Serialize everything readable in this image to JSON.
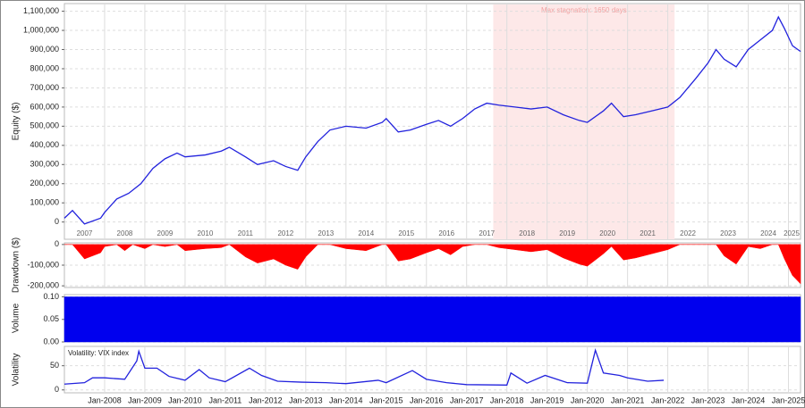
{
  "chart_data": [
    {
      "type": "line",
      "ylabel": "Equity ($)",
      "color": "#2222dd",
      "xlim": [
        2007.0,
        2025.3
      ],
      "ylim": [
        -90000,
        1140000
      ],
      "yticks": [
        0,
        {
          "value": 100000,
          "label": "100,000"
        },
        {
          "value": 200000,
          "label": "200,000"
        },
        {
          "value": 300000,
          "label": "300,000"
        },
        {
          "value": 400000,
          "label": "400,000"
        },
        {
          "value": 500000,
          "label": "500,000"
        },
        {
          "value": 600000,
          "label": "600,000"
        },
        {
          "value": 700000,
          "label": "700,000"
        },
        {
          "value": 800000,
          "label": "800,000"
        },
        {
          "value": 900000,
          "label": "900,000"
        },
        {
          "value": 1000000,
          "label": "1,000,000"
        },
        {
          "value": 1100000,
          "label": "1,100,000"
        }
      ],
      "year_labels": [
        "2007",
        "2008",
        "2009",
        "2010",
        "2011",
        "2012",
        "2013",
        "2014",
        "2015",
        "2016",
        "2017",
        "2018",
        "2019",
        "2020",
        "2021",
        "2022",
        "2023",
        "2024",
        "2025"
      ],
      "shaded_region": {
        "x": [
          2017.66,
          2022.17
        ],
        "label": "Max stagnation: 1650 days",
        "color": "#fde8e8"
      },
      "x": [
        2007.0,
        2007.2,
        2007.5,
        2007.9,
        2008.0,
        2008.3,
        2008.6,
        2008.9,
        2009.2,
        2009.5,
        2009.8,
        2010.0,
        2010.5,
        2010.9,
        2011.1,
        2011.5,
        2011.8,
        2012.2,
        2012.5,
        2012.8,
        2013.0,
        2013.3,
        2013.6,
        2014.0,
        2014.5,
        2014.9,
        2015.0,
        2015.3,
        2015.6,
        2016.0,
        2016.3,
        2016.6,
        2016.9,
        2017.2,
        2017.5,
        2017.8,
        2018.2,
        2018.6,
        2019.0,
        2019.4,
        2019.8,
        2020.0,
        2020.4,
        2020.6,
        2020.9,
        2021.2,
        2021.6,
        2022.0,
        2022.3,
        2022.7,
        2023.0,
        2023.2,
        2023.4,
        2023.7,
        2024.0,
        2024.3,
        2024.6,
        2024.75,
        2024.9,
        2025.1,
        2025.3
      ],
      "values": [
        20000,
        60000,
        -10000,
        20000,
        50000,
        120000,
        150000,
        200000,
        280000,
        330000,
        360000,
        340000,
        350000,
        370000,
        390000,
        340000,
        300000,
        320000,
        290000,
        270000,
        340000,
        420000,
        480000,
        500000,
        490000,
        520000,
        540000,
        470000,
        480000,
        510000,
        530000,
        500000,
        540000,
        590000,
        620000,
        610000,
        600000,
        590000,
        600000,
        560000,
        530000,
        520000,
        580000,
        620000,
        550000,
        560000,
        580000,
        600000,
        650000,
        750000,
        830000,
        900000,
        850000,
        810000,
        900000,
        950000,
        1000000,
        1070000,
        1010000,
        920000,
        890000
      ]
    },
    {
      "type": "area",
      "ylabel": "Drawdown ($)",
      "color": "#ff0000",
      "xlim": [
        2007.0,
        2025.3
      ],
      "ylim": [
        -208000,
        8000
      ],
      "yticks": [
        {
          "value": -200000,
          "label": "-200,000"
        },
        {
          "value": -100000,
          "label": "-100,000"
        },
        0
      ],
      "x": [
        2007.0,
        2007.2,
        2007.5,
        2007.9,
        2008.0,
        2008.3,
        2008.5,
        2008.7,
        2009.0,
        2009.2,
        2009.5,
        2009.8,
        2010.0,
        2010.5,
        2010.9,
        2011.1,
        2011.5,
        2011.8,
        2012.2,
        2012.5,
        2012.8,
        2013.0,
        2013.3,
        2013.6,
        2014.0,
        2014.5,
        2014.9,
        2015.0,
        2015.3,
        2015.6,
        2016.0,
        2016.3,
        2016.6,
        2016.9,
        2017.2,
        2017.5,
        2017.8,
        2018.2,
        2018.6,
        2019.0,
        2019.4,
        2019.8,
        2020.0,
        2020.4,
        2020.6,
        2020.9,
        2021.2,
        2021.6,
        2022.0,
        2022.3,
        2022.7,
        2023.0,
        2023.2,
        2023.4,
        2023.7,
        2024.0,
        2024.3,
        2024.6,
        2024.75,
        2024.9,
        2025.1,
        2025.3
      ],
      "values": [
        0,
        0,
        -70000,
        -40000,
        -10000,
        0,
        -30000,
        0,
        -20000,
        0,
        -10000,
        0,
        -30000,
        -20000,
        -15000,
        0,
        -60000,
        -90000,
        -70000,
        -100000,
        -120000,
        -60000,
        0,
        0,
        -20000,
        -30000,
        0,
        0,
        -80000,
        -70000,
        -40000,
        -20000,
        -50000,
        -10000,
        0,
        0,
        -15000,
        -25000,
        -35000,
        -25000,
        -65000,
        -95000,
        -105000,
        -45000,
        -10000,
        -75000,
        -65000,
        -45000,
        -25000,
        0,
        0,
        0,
        0,
        -55000,
        -95000,
        -10000,
        -20000,
        0,
        0,
        -70000,
        -150000,
        -190000
      ]
    },
    {
      "type": "area",
      "ylabel": "Volume",
      "color": "#0000ee",
      "xlim": [
        2007.0,
        2025.3
      ],
      "ylim": [
        0,
        0.105
      ],
      "yticks": [
        {
          "value": 0,
          "label": "0.00"
        },
        {
          "value": 0.05,
          "label": "0.05"
        },
        {
          "value": 0.1,
          "label": "0.10"
        }
      ],
      "x": [
        2007.0,
        2025.3
      ],
      "values": [
        0.1,
        0.1
      ]
    },
    {
      "type": "line",
      "ylabel": "Volatility",
      "title": "Volatility: VIX index",
      "color": "#2222dd",
      "xlim": [
        2007.0,
        2025.3
      ],
      "ylim": [
        -6,
        90
      ],
      "yticks": [
        0,
        50
      ],
      "xticks": [
        {
          "value": 2008,
          "label": "Jan-2008"
        },
        {
          "value": 2009,
          "label": "Jan-2009"
        },
        {
          "value": 2010,
          "label": "Jan-2010"
        },
        {
          "value": 2011,
          "label": "Jan-2011"
        },
        {
          "value": 2012,
          "label": "Jan-2012"
        },
        {
          "value": 2013,
          "label": "Jan-2013"
        },
        {
          "value": 2014,
          "label": "Jan-2014"
        },
        {
          "value": 2015,
          "label": "Jan-2015"
        },
        {
          "value": 2016,
          "label": "Jan-2016"
        },
        {
          "value": 2017,
          "label": "Jan-2017"
        },
        {
          "value": 2018,
          "label": "Jan-2018"
        },
        {
          "value": 2019,
          "label": "Jan-2019"
        },
        {
          "value": 2020,
          "label": "Jan-2020"
        },
        {
          "value": 2021,
          "label": "Jan-2021"
        },
        {
          "value": 2022,
          "label": "Jan-2022"
        },
        {
          "value": 2023,
          "label": "Jan-2023"
        },
        {
          "value": 2024,
          "label": "Jan-2024"
        },
        {
          "value": 2025,
          "label": "Jan-2025"
        }
      ],
      "x": [
        2007.0,
        2007.5,
        2007.7,
        2008.0,
        2008.5,
        2008.8,
        2008.85,
        2009.0,
        2009.3,
        2009.6,
        2010.0,
        2010.35,
        2010.6,
        2011.0,
        2011.6,
        2011.9,
        2012.3,
        2012.9,
        2013.5,
        2014.0,
        2014.8,
        2015.0,
        2015.65,
        2016.0,
        2016.5,
        2017.0,
        2018.0,
        2018.1,
        2018.5,
        2018.95,
        2019.5,
        2020.0,
        2020.2,
        2020.4,
        2020.8,
        2021.0,
        2021.5,
        2021.9
      ],
      "values": [
        12,
        15,
        25,
        25,
        22,
        60,
        80,
        45,
        45,
        28,
        20,
        42,
        25,
        17,
        45,
        30,
        18,
        16,
        15,
        13,
        20,
        15,
        40,
        22,
        15,
        11,
        10,
        35,
        14,
        30,
        15,
        14,
        82,
        35,
        30,
        25,
        18,
        20
      ]
    }
  ]
}
